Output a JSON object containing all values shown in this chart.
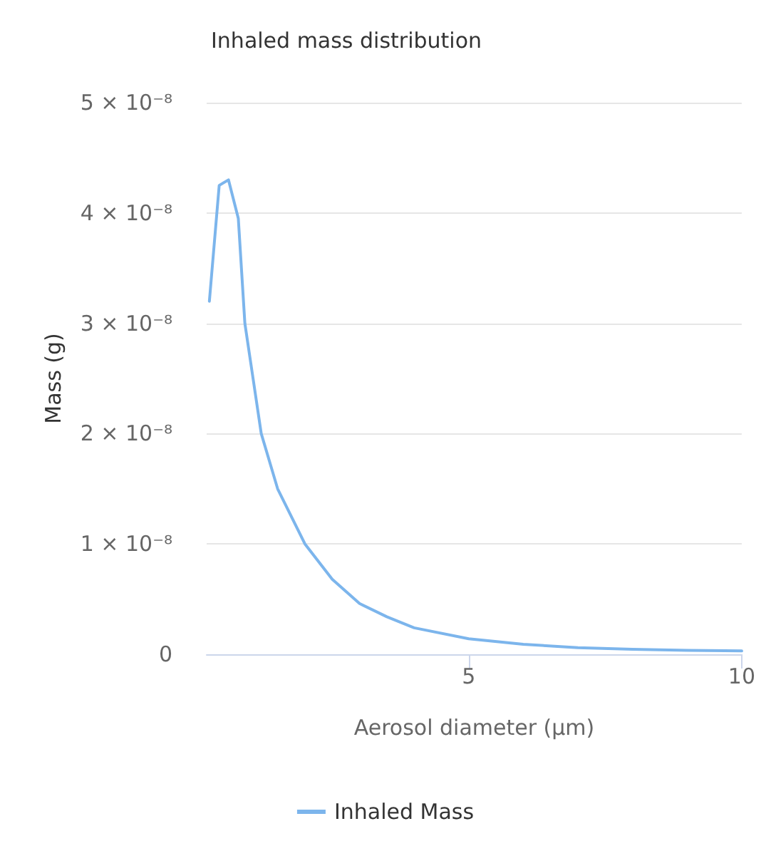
{
  "chart_data": {
    "type": "line",
    "title": "Inhaled mass distribution",
    "xlabel": "Aerosol diameter (µm)",
    "ylabel": "Mass (g)",
    "xlim": [
      0.2,
      10
    ],
    "xticks": [
      5,
      10
    ],
    "ylim": [
      0,
      5e-08
    ],
    "yticks": [
      0,
      {
        "value": 1e-08,
        "label": "1 × 10⁻⁸"
      },
      {
        "value": 2e-08,
        "label": "2 × 10⁻⁸"
      },
      {
        "value": 3e-08,
        "label": "3 × 10⁻⁸"
      },
      {
        "value": 4e-08,
        "label": "4 × 10⁻⁸"
      },
      {
        "value": 5e-08,
        "label": "5 × 10⁻⁸"
      }
    ],
    "grid": "y",
    "legend": "bottom",
    "marker": "none",
    "series": [
      {
        "name": "Inhaled Mass",
        "color": "#7cb5ec",
        "x": [
          0.25,
          0.43,
          0.6,
          0.78,
          0.9,
          1.05,
          1.2,
          1.5,
          2,
          2.5,
          3,
          3.5,
          4,
          5,
          6,
          7,
          8,
          9,
          10
        ],
        "values": [
          3.2e-08,
          4.25e-08,
          4.3e-08,
          3.95e-08,
          3e-08,
          2.5e-08,
          2e-08,
          1.5e-08,
          1e-08,
          6.8e-09,
          4.6e-09,
          3.4e-09,
          2.4e-09,
          1.4e-09,
          9e-10,
          6e-10,
          4.5e-10,
          3.5e-10,
          3e-10
        ]
      }
    ]
  }
}
